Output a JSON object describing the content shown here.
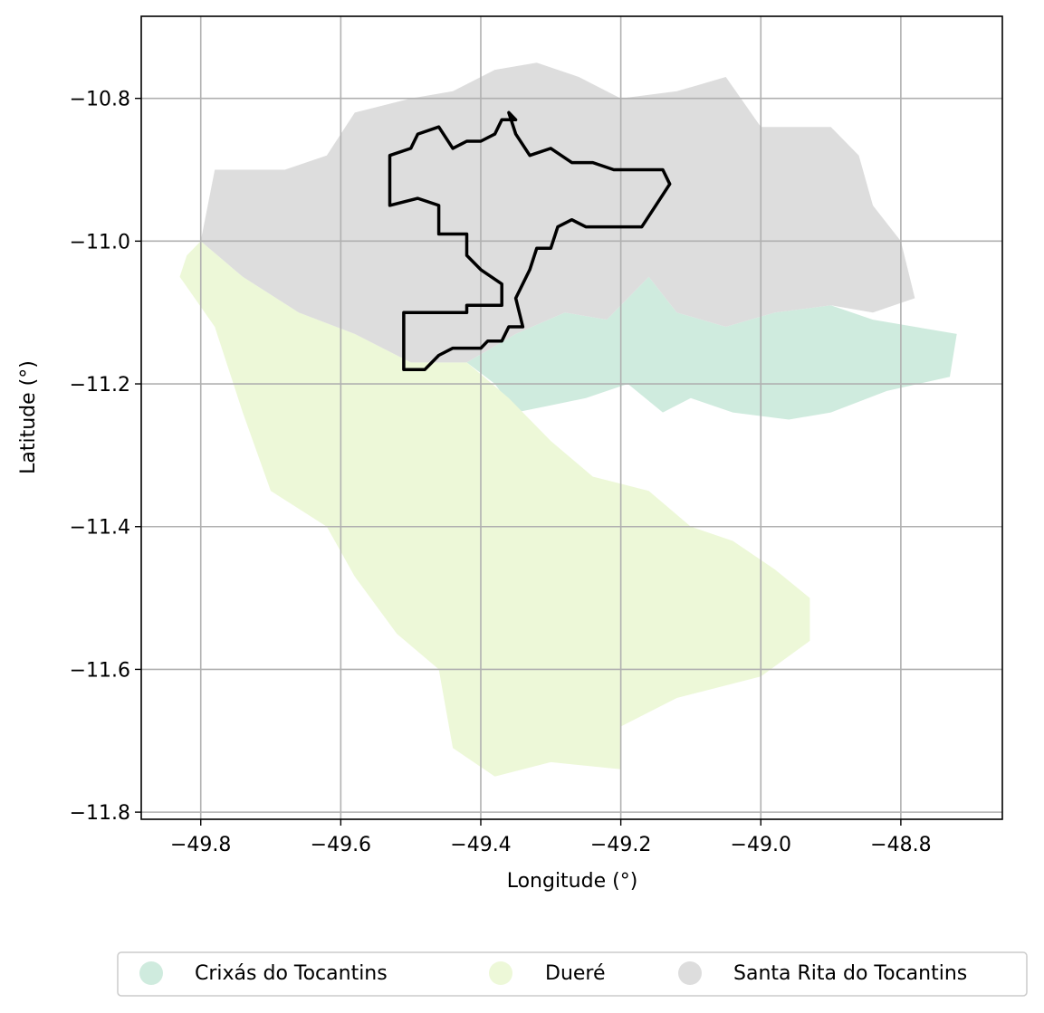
{
  "chart_data": {
    "type": "map",
    "xlabel": "Longitude (°)",
    "ylabel": "Latitude (°)",
    "xlim": [
      -49.885,
      -48.655
    ],
    "ylim": [
      -11.81,
      -10.685
    ],
    "xticks": [
      -49.8,
      -49.6,
      -49.4,
      -49.2,
      -49.0,
      -48.8
    ],
    "yticks": [
      -10.8,
      -11.0,
      -11.2,
      -11.4,
      -11.6,
      -11.8
    ],
    "xtick_labels": [
      "−49.8",
      "−49.6",
      "−49.4",
      "−49.2",
      "−49.0",
      "−48.8"
    ],
    "ytick_labels": [
      "−10.8",
      "−11.0",
      "−11.2",
      "−11.4",
      "−11.6",
      "−11.8"
    ],
    "grid": true,
    "legend_position": "bottom-center",
    "regions": [
      {
        "name": "Crixás do Tocantins",
        "color": "#cfebde",
        "polygon": [
          [
            -49.42,
            -11.17
          ],
          [
            -49.35,
            -11.13
          ],
          [
            -49.28,
            -11.1
          ],
          [
            -49.22,
            -11.11
          ],
          [
            -49.16,
            -11.05
          ],
          [
            -49.12,
            -11.1
          ],
          [
            -49.05,
            -11.12
          ],
          [
            -48.98,
            -11.1
          ],
          [
            -48.9,
            -11.09
          ],
          [
            -48.84,
            -11.11
          ],
          [
            -48.78,
            -11.12
          ],
          [
            -48.72,
            -11.13
          ],
          [
            -48.73,
            -11.19
          ],
          [
            -48.82,
            -11.21
          ],
          [
            -48.9,
            -11.24
          ],
          [
            -48.96,
            -11.25
          ],
          [
            -49.04,
            -11.24
          ],
          [
            -49.1,
            -11.22
          ],
          [
            -49.14,
            -11.24
          ],
          [
            -49.19,
            -11.2
          ],
          [
            -49.25,
            -11.22
          ],
          [
            -49.3,
            -11.23
          ],
          [
            -49.35,
            -11.24
          ],
          [
            -49.38,
            -11.2
          ]
        ]
      },
      {
        "name": "Dueré",
        "color": "#edf8d8",
        "polygon": [
          [
            -49.82,
            -11.02
          ],
          [
            -49.8,
            -11.0
          ],
          [
            -49.74,
            -11.05
          ],
          [
            -49.66,
            -11.1
          ],
          [
            -49.58,
            -11.13
          ],
          [
            -49.5,
            -11.17
          ],
          [
            -49.42,
            -11.17
          ],
          [
            -49.36,
            -11.22
          ],
          [
            -49.3,
            -11.28
          ],
          [
            -49.24,
            -11.33
          ],
          [
            -49.16,
            -11.35
          ],
          [
            -49.1,
            -11.4
          ],
          [
            -49.04,
            -11.42
          ],
          [
            -48.98,
            -11.46
          ],
          [
            -48.93,
            -11.5
          ],
          [
            -48.93,
            -11.56
          ],
          [
            -49.0,
            -11.61
          ],
          [
            -49.12,
            -11.64
          ],
          [
            -49.2,
            -11.68
          ],
          [
            -49.2,
            -11.74
          ],
          [
            -49.3,
            -11.73
          ],
          [
            -49.38,
            -11.75
          ],
          [
            -49.44,
            -11.71
          ],
          [
            -49.46,
            -11.6
          ],
          [
            -49.52,
            -11.55
          ],
          [
            -49.58,
            -11.47
          ],
          [
            -49.62,
            -11.4
          ],
          [
            -49.7,
            -11.35
          ],
          [
            -49.74,
            -11.24
          ],
          [
            -49.78,
            -11.12
          ],
          [
            -49.83,
            -11.05
          ]
        ]
      },
      {
        "name": "Santa Rita do Tocantins",
        "color": "#dddddd",
        "polygon": [
          [
            -49.8,
            -11.0
          ],
          [
            -49.78,
            -10.9
          ],
          [
            -49.68,
            -10.9
          ],
          [
            -49.62,
            -10.88
          ],
          [
            -49.58,
            -10.82
          ],
          [
            -49.5,
            -10.8
          ],
          [
            -49.44,
            -10.79
          ],
          [
            -49.38,
            -10.76
          ],
          [
            -49.32,
            -10.75
          ],
          [
            -49.26,
            -10.77
          ],
          [
            -49.2,
            -10.8
          ],
          [
            -49.12,
            -10.79
          ],
          [
            -49.05,
            -10.77
          ],
          [
            -49.0,
            -10.84
          ],
          [
            -48.9,
            -10.84
          ],
          [
            -48.86,
            -10.88
          ],
          [
            -48.84,
            -10.95
          ],
          [
            -48.8,
            -11.0
          ],
          [
            -48.78,
            -11.08
          ],
          [
            -48.84,
            -11.1
          ],
          [
            -48.9,
            -11.09
          ],
          [
            -48.98,
            -11.1
          ],
          [
            -49.05,
            -11.12
          ],
          [
            -49.12,
            -11.1
          ],
          [
            -49.16,
            -11.05
          ],
          [
            -49.22,
            -11.11
          ],
          [
            -49.28,
            -11.1
          ],
          [
            -49.35,
            -11.13
          ],
          [
            -49.42,
            -11.17
          ],
          [
            -49.5,
            -11.17
          ],
          [
            -49.58,
            -11.13
          ],
          [
            -49.66,
            -11.1
          ],
          [
            -49.74,
            -11.05
          ]
        ]
      }
    ],
    "highlight_outline": {
      "color": "#000000",
      "polygon": [
        [
          -49.51,
          -11.18
        ],
        [
          -49.51,
          -11.1
        ],
        [
          -49.42,
          -11.1
        ],
        [
          -49.42,
          -11.09
        ],
        [
          -49.37,
          -11.09
        ],
        [
          -49.37,
          -11.06
        ],
        [
          -49.4,
          -11.04
        ],
        [
          -49.42,
          -11.02
        ],
        [
          -49.42,
          -10.99
        ],
        [
          -49.46,
          -10.99
        ],
        [
          -49.46,
          -10.95
        ],
        [
          -49.49,
          -10.94
        ],
        [
          -49.53,
          -10.95
        ],
        [
          -49.53,
          -10.88
        ],
        [
          -49.5,
          -10.87
        ],
        [
          -49.49,
          -10.85
        ],
        [
          -49.46,
          -10.84
        ],
        [
          -49.44,
          -10.87
        ],
        [
          -49.42,
          -10.86
        ],
        [
          -49.4,
          -10.86
        ],
        [
          -49.38,
          -10.85
        ],
        [
          -49.37,
          -10.83
        ],
        [
          -49.35,
          -10.83
        ],
        [
          -49.36,
          -10.82
        ],
        [
          -49.35,
          -10.85
        ],
        [
          -49.33,
          -10.88
        ],
        [
          -49.3,
          -10.87
        ],
        [
          -49.27,
          -10.89
        ],
        [
          -49.24,
          -10.89
        ],
        [
          -49.21,
          -10.9
        ],
        [
          -49.17,
          -10.9
        ],
        [
          -49.14,
          -10.9
        ],
        [
          -49.13,
          -10.92
        ],
        [
          -49.15,
          -10.95
        ],
        [
          -49.17,
          -10.98
        ],
        [
          -49.2,
          -10.98
        ],
        [
          -49.25,
          -10.98
        ],
        [
          -49.27,
          -10.97
        ],
        [
          -49.29,
          -10.98
        ],
        [
          -49.3,
          -11.01
        ],
        [
          -49.32,
          -11.01
        ],
        [
          -49.33,
          -11.04
        ],
        [
          -49.35,
          -11.08
        ],
        [
          -49.34,
          -11.12
        ],
        [
          -49.36,
          -11.12
        ],
        [
          -49.37,
          -11.14
        ],
        [
          -49.39,
          -11.14
        ],
        [
          -49.4,
          -11.15
        ],
        [
          -49.44,
          -11.15
        ],
        [
          -49.46,
          -11.16
        ],
        [
          -49.47,
          -11.17
        ],
        [
          -49.48,
          -11.18
        ]
      ]
    }
  }
}
